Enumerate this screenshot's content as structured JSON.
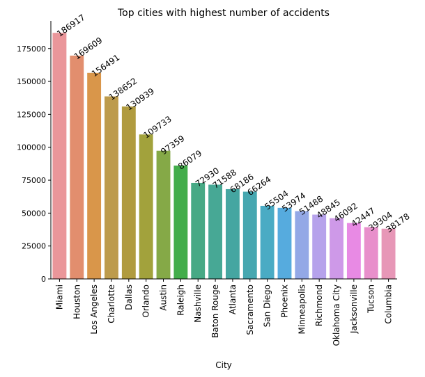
{
  "chart_data": {
    "type": "bar",
    "title": "Top cities with highest number of accidents",
    "xlabel": "City",
    "ylabel": "",
    "ylim": [
      0,
      196000
    ],
    "yticks": [
      0,
      25000,
      50000,
      75000,
      100000,
      125000,
      150000,
      175000
    ],
    "grid": false,
    "legend": "none",
    "categories": [
      "Miami",
      "Houston",
      "Los Angeles",
      "Charlotte",
      "Dallas",
      "Orlando",
      "Austin",
      "Raleigh",
      "Nashville",
      "Baton Rouge",
      "Atlanta",
      "Sacramento",
      "San Diego",
      "Phoenix",
      "Minneapolis",
      "Richmond",
      "Oklahoma City",
      "Jacksonville",
      "Tucson",
      "Columbia"
    ],
    "values": [
      186917,
      169609,
      156491,
      138652,
      130939,
      109733,
      97359,
      86079,
      72930,
      71588,
      68186,
      66264,
      55504,
      53974,
      51488,
      48845,
      46092,
      42447,
      39304,
      38178
    ],
    "colors": [
      "#ea969a",
      "#e28e6e",
      "#d9964a",
      "#bd9b4c",
      "#b09b3f",
      "#a2a23c",
      "#85a947",
      "#43ad4b",
      "#47a985",
      "#47a895",
      "#45a6a1",
      "#46a7b0",
      "#4aabc4",
      "#56abde",
      "#93a8e6",
      "#b6a2eb",
      "#ce99e8",
      "#e88ae4",
      "#e88fcb",
      "#e797b7"
    ]
  }
}
